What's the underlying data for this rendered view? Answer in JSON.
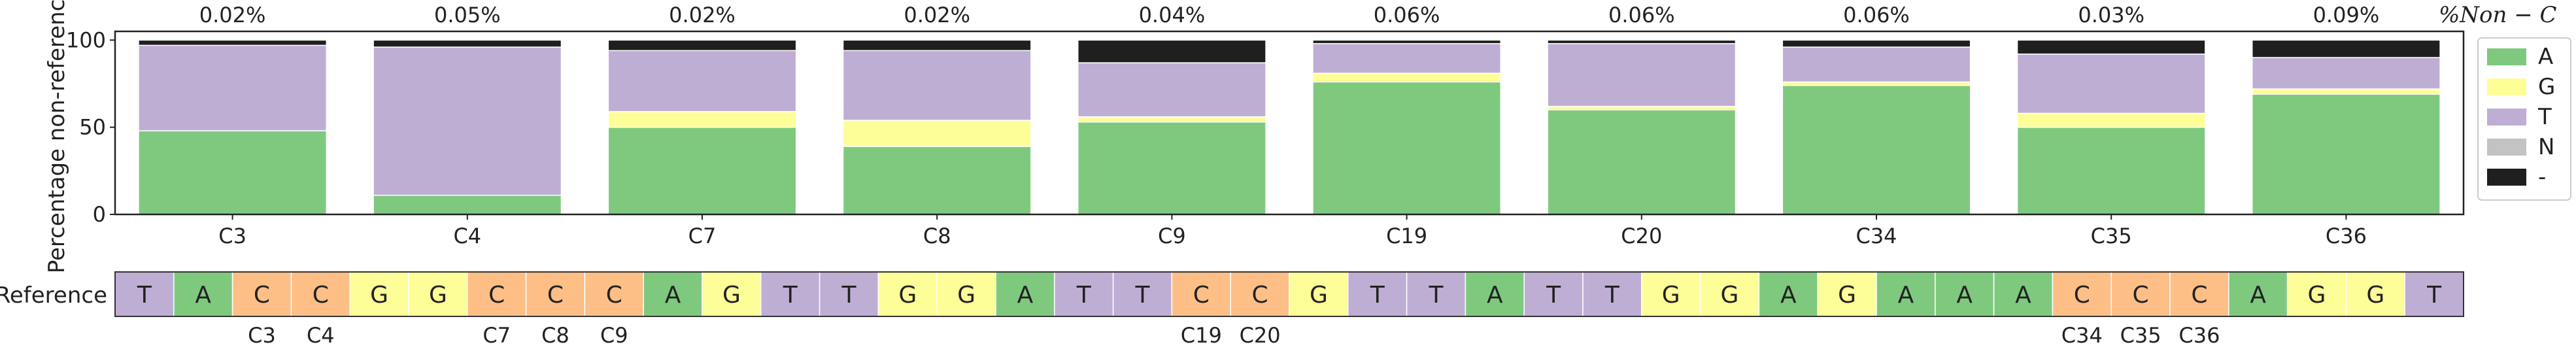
{
  "chart_data": [
    {
      "type": "bar",
      "stacked": true,
      "ylabel": "Percentage non-reference",
      "xlabel": "",
      "ylim": [
        0,
        105
      ],
      "yticks": [
        "0",
        "50",
        "100"
      ],
      "ytick_values": [
        0,
        50,
        100
      ],
      "grid": false,
      "categories": [
        "C3",
        "C4",
        "C7",
        "C8",
        "C9",
        "C19",
        "C20",
        "C34",
        "C35",
        "C36"
      ],
      "series": [
        {
          "name": "A",
          "color": "#7fc97f",
          "values": [
            48,
            11,
            50,
            39,
            53,
            76,
            60,
            74,
            50,
            69
          ]
        },
        {
          "name": "G",
          "color": "#fdfe98",
          "values": [
            0,
            0,
            9,
            15,
            3,
            5,
            2,
            2,
            8,
            3
          ]
        },
        {
          "name": "T",
          "color": "#beaed4",
          "values": [
            49,
            85,
            35,
            40,
            31,
            17,
            36,
            20,
            34,
            18
          ]
        },
        {
          "name": "N",
          "color": "#c3c3c3",
          "values": [
            0,
            0,
            0,
            0,
            0,
            0,
            0,
            0,
            0,
            0
          ]
        },
        {
          "name": "-",
          "color": "#1f1f1f",
          "values": [
            3,
            4,
            6,
            6,
            13,
            2,
            2,
            4,
            8,
            10
          ]
        }
      ],
      "top_annotation_title": "%Non − C",
      "top_annotations": [
        "0.02%",
        "0.05%",
        "0.02%",
        "0.02%",
        "0.04%",
        "0.06%",
        "0.06%",
        "0.06%",
        "0.03%",
        "0.09%"
      ],
      "legend": {
        "placement": "right",
        "entries": [
          "A",
          "G",
          "T",
          "N",
          "-"
        ]
      }
    },
    {
      "type": "table",
      "row_label": "Reference",
      "sequence": [
        "T",
        "A",
        "C",
        "C",
        "G",
        "G",
        "C",
        "C",
        "C",
        "A",
        "G",
        "T",
        "T",
        "G",
        "G",
        "A",
        "T",
        "T",
        "C",
        "C",
        "G",
        "T",
        "T",
        "A",
        "T",
        "T",
        "G",
        "G",
        "A",
        "G",
        "A",
        "A",
        "A",
        "C",
        "C",
        "C",
        "A",
        "G",
        "G",
        "T"
      ],
      "base_colors": {
        "A": "#7fc97f",
        "C": "#fdbf86",
        "G": "#fdfe98",
        "T": "#beaed4"
      },
      "position_labels": [
        {
          "index": 2,
          "text": "C3"
        },
        {
          "index": 3,
          "text": "C4"
        },
        {
          "index": 6,
          "text": "C7"
        },
        {
          "index": 7,
          "text": "C8"
        },
        {
          "index": 8,
          "text": "C9"
        },
        {
          "index": 18,
          "text": "C19"
        },
        {
          "index": 19,
          "text": "C20"
        },
        {
          "index": 33,
          "text": "C34"
        },
        {
          "index": 34,
          "text": "C35"
        },
        {
          "index": 35,
          "text": "C36"
        }
      ]
    }
  ]
}
